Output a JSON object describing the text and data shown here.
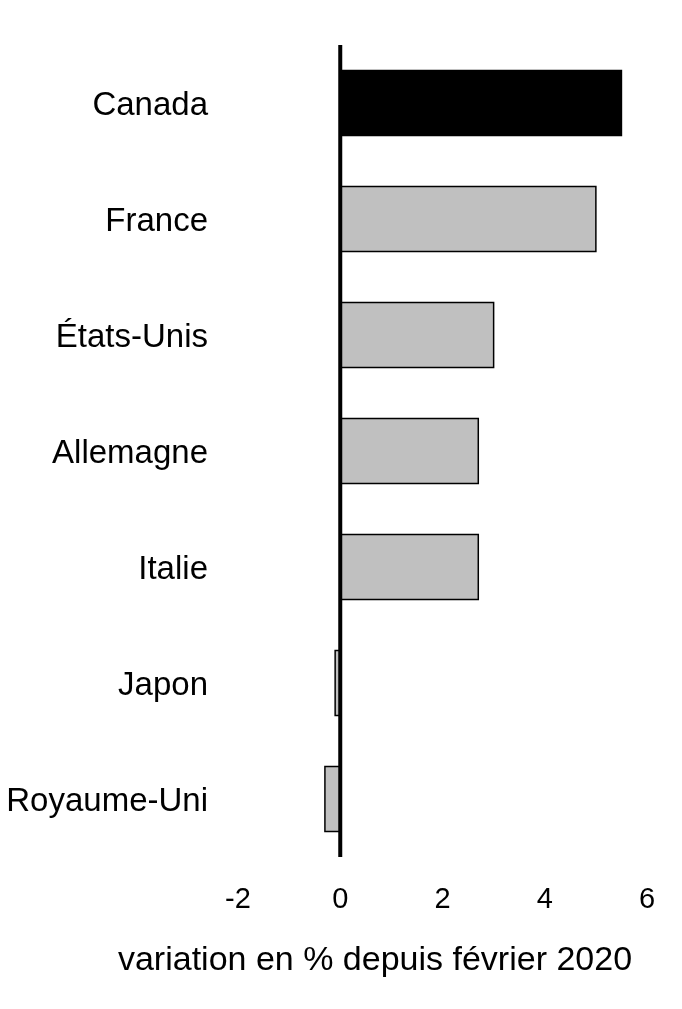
{
  "chart_data": {
    "type": "bar",
    "orientation": "horizontal",
    "categories": [
      "Canada",
      "France",
      "États-Unis",
      "Allemagne",
      "Italie",
      "Japon",
      "Royaume-Uni"
    ],
    "values": [
      5.5,
      5.0,
      3.0,
      2.7,
      2.7,
      -0.1,
      -0.3
    ],
    "colors": [
      "#000000",
      "#c0c0c0",
      "#c0c0c0",
      "#c0c0c0",
      "#c0c0c0",
      "#c0c0c0",
      "#c0c0c0"
    ],
    "xlabel": "variation en % depuis février 2020",
    "xlim": [
      -2,
      6
    ],
    "xticks": [
      -2,
      0,
      2,
      4,
      6
    ]
  }
}
